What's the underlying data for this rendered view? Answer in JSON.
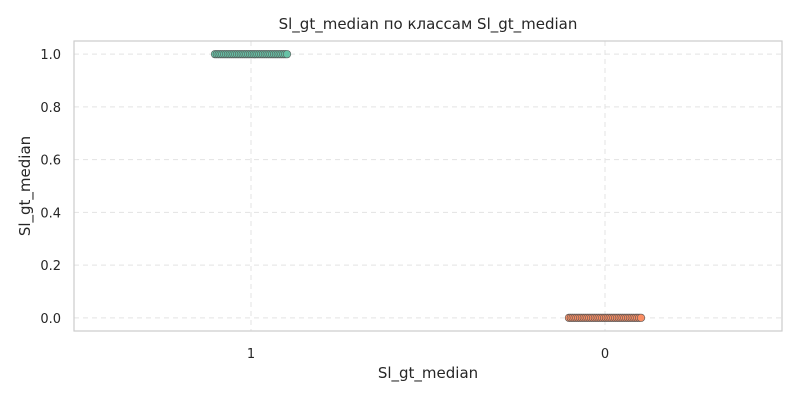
{
  "chart_data": {
    "type": "scatter",
    "title": "Sl_gt_median по классам Sl_gt_median",
    "xlabel": "Sl_gt_median",
    "ylabel": "Sl_gt_median",
    "categories": [
      "1",
      "0"
    ],
    "ylim": [
      -0.05,
      1.05
    ],
    "yticks": [
      "0.0",
      "0.2",
      "0.4",
      "0.6",
      "0.8",
      "1.0"
    ],
    "grid": true,
    "series": [
      {
        "category": "1",
        "y": 1.0,
        "color": "#66c2a5"
      },
      {
        "category": "0",
        "y": 0.0,
        "color": "#fc8d62"
      }
    ]
  }
}
